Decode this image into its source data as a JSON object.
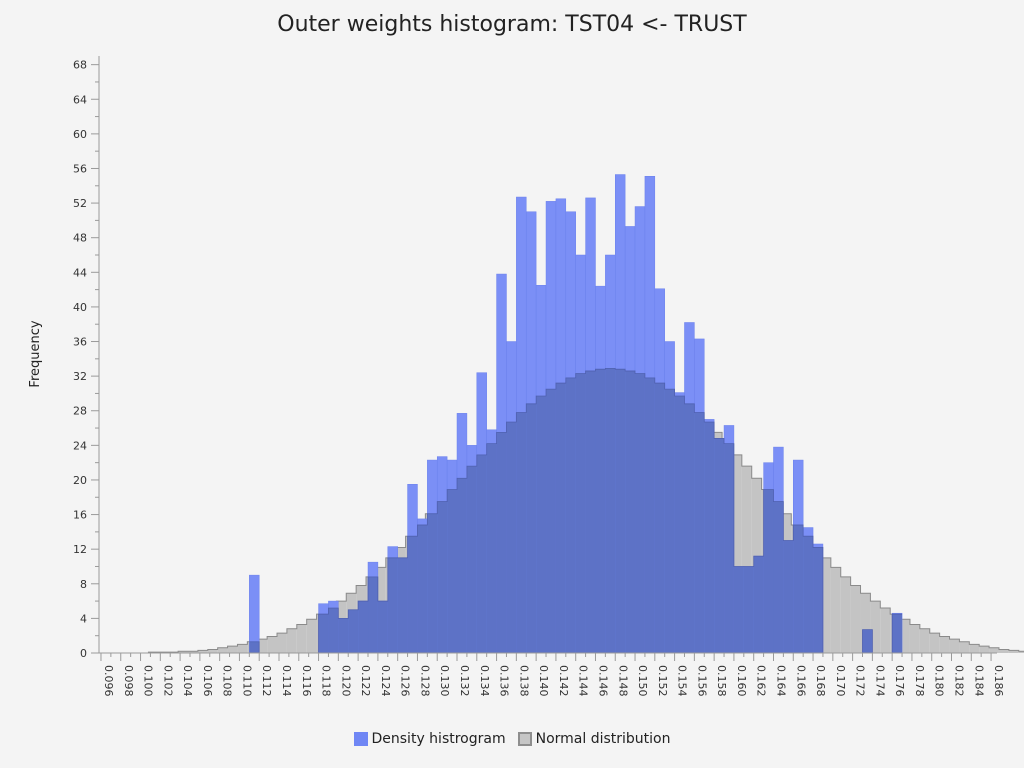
{
  "chart_data": {
    "type": "bar",
    "title": "Outer weights histogram: TST04 <- TRUST",
    "xlabel": "",
    "ylabel": "Frequency",
    "xlim": [
      0.0958,
      0.1866
    ],
    "ylim": [
      0,
      69
    ],
    "bin_width": 0.001,
    "x_ticks": [
      "0.096",
      "0.098",
      "0.100",
      "0.102",
      "0.104",
      "0.106",
      "0.108",
      "0.110",
      "0.112",
      "0.114",
      "0.116",
      "0.118",
      "0.120",
      "0.122",
      "0.124",
      "0.126",
      "0.128",
      "0.130",
      "0.132",
      "0.134",
      "0.136",
      "0.138",
      "0.140",
      "0.142",
      "0.144",
      "0.146",
      "0.148",
      "0.150",
      "0.152",
      "0.154",
      "0.156",
      "0.158",
      "0.160",
      "0.162",
      "0.164",
      "0.166",
      "0.168",
      "0.170",
      "0.172",
      "0.174",
      "0.176",
      "0.178",
      "0.180",
      "0.182",
      "0.184",
      "0.186"
    ],
    "y_ticks": [
      "0",
      "4",
      "8",
      "12",
      "16",
      "20",
      "24",
      "28",
      "32",
      "36",
      "40",
      "44",
      "48",
      "52",
      "56",
      "60",
      "64",
      "68"
    ],
    "grid": false,
    "legend_position": "bottom-center",
    "series": [
      {
        "name": "Density histrogram",
        "color": "#6f86f4",
        "x_start": 0.111,
        "values": [
          9.0,
          0,
          0,
          0,
          0,
          0,
          0,
          5.7,
          6.0,
          4.0,
          5.0,
          6.0,
          10.5,
          6.0,
          12.3,
          11.0,
          19.5,
          15.5,
          22.3,
          22.7,
          22.3,
          27.7,
          24.0,
          32.4,
          25.8,
          43.8,
          36.0,
          52.7,
          51.0,
          42.5,
          52.2,
          52.5,
          51.0,
          46.0,
          52.6,
          42.4,
          46.0,
          55.3,
          49.3,
          51.6,
          55.1,
          42.1,
          36.0,
          30.1,
          38.2,
          36.3,
          27.0,
          24.8,
          26.3,
          10.0,
          10.0,
          11.2,
          22.0,
          23.8,
          13.0,
          22.3,
          14.5,
          12.6,
          0,
          0,
          0,
          0,
          2.7,
          0,
          0,
          4.6
        ]
      },
      {
        "name": "Normal distribution",
        "color": "#c6c6c6",
        "x_start": 0.0958,
        "values": [
          0.0,
          0.0,
          0.0,
          0.0,
          0.0,
          0.1,
          0.1,
          0.1,
          0.2,
          0.2,
          0.3,
          0.4,
          0.6,
          0.8,
          1.0,
          1.3,
          1.6,
          1.9,
          2.3,
          2.8,
          3.3,
          3.9,
          4.5,
          5.2,
          6.0,
          6.9,
          7.8,
          8.8,
          9.9,
          11.0,
          12.2,
          13.5,
          14.8,
          16.1,
          17.5,
          18.9,
          20.2,
          21.6,
          22.9,
          24.2,
          25.5,
          26.7,
          27.8,
          28.8,
          29.7,
          30.5,
          31.2,
          31.8,
          32.3,
          32.6,
          32.8,
          32.9,
          32.8,
          32.6,
          32.3,
          31.8,
          31.2,
          30.5,
          29.7,
          28.8,
          27.8,
          26.7,
          25.5,
          24.2,
          22.9,
          21.6,
          20.2,
          18.9,
          17.5,
          16.1,
          14.8,
          13.5,
          12.2,
          11.0,
          9.9,
          8.8,
          7.8,
          6.9,
          6.0,
          5.2,
          4.5,
          3.9,
          3.3,
          2.8,
          2.3,
          1.9,
          1.6,
          1.3,
          1.0,
          0.8,
          0.6,
          0.4,
          0.3,
          0.2,
          0.2,
          0.1,
          0.1,
          0.1,
          0.0,
          0.0,
          0.0
        ]
      }
    ]
  },
  "legend": {
    "density_label": "Density histrogram",
    "normal_label": "Normal distribution"
  }
}
